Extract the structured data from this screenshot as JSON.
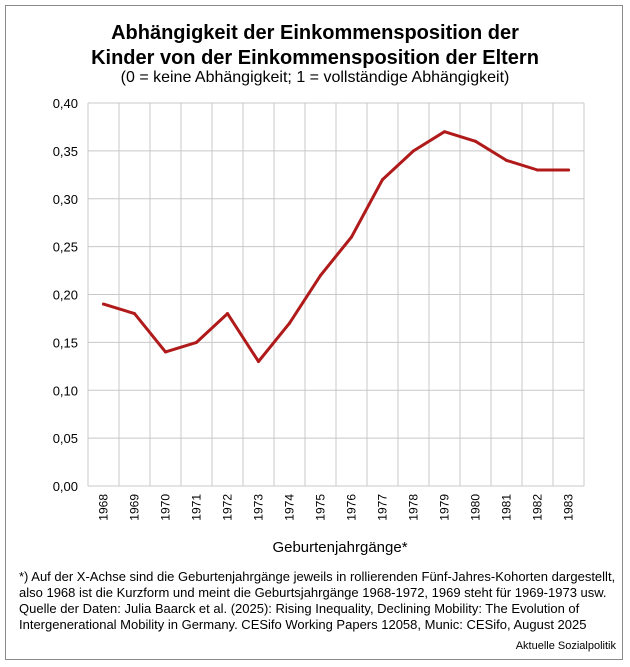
{
  "title_line1": "Abhängigkeit der Einkommensposition der",
  "title_line2": "Kinder von der Einkommensposition der Eltern",
  "subtitle": "(0 = keine Abhängigkeit; 1 = vollständige Abhängigkeit)",
  "footnotes": [
    "*) Auf der X-Achse sind die Geburtenjahrgänge jeweils in rollierenden Fünf-Jahres-Kohorten dargestellt,",
    "also 1968 ist die Kurzform und meint die Geburtsjahrgänge 1968-1972, 1969 steht für 1969-1973 usw.",
    "Quelle der Daten: Julia Baarck et al. (2025): Rising Inequality, Declining Mobility: The Evolution of",
    "Intergenerational Mobility in Germany. CESifo Working Papers 12058, Munic: CESifo, August 2025"
  ],
  "credit": "Aktuelle Sozialpolitik",
  "colors": {
    "line": "#b01a1a",
    "grid": "#c8c8c8"
  },
  "chart_data": {
    "type": "line",
    "title": "Abhängigkeit der Einkommensposition der Kinder von der Einkommensposition der Eltern",
    "subtitle": "(0 = keine Abhängigkeit; 1 = vollständige Abhängigkeit)",
    "xlabel": "Geburtenjahrgänge*",
    "ylabel": "",
    "categories": [
      "1968",
      "1969",
      "1970",
      "1971",
      "1972",
      "1973",
      "1974",
      "1975",
      "1976",
      "1977",
      "1978",
      "1979",
      "1980",
      "1981",
      "1982",
      "1983"
    ],
    "values": [
      0.19,
      0.18,
      0.14,
      0.15,
      0.18,
      0.13,
      0.17,
      0.22,
      0.26,
      0.32,
      0.35,
      0.37,
      0.36,
      0.34,
      0.33,
      0.33
    ],
    "ylim": [
      0,
      0.4
    ],
    "yticks": [
      0,
      0.05,
      0.1,
      0.15,
      0.2,
      0.25,
      0.3,
      0.35,
      0.4
    ],
    "ytick_labels": [
      "0,00",
      "0,05",
      "0,10",
      "0,15",
      "0,20",
      "0,25",
      "0,30",
      "0,35",
      "0,40"
    ],
    "grid": true,
    "legend": "none"
  }
}
